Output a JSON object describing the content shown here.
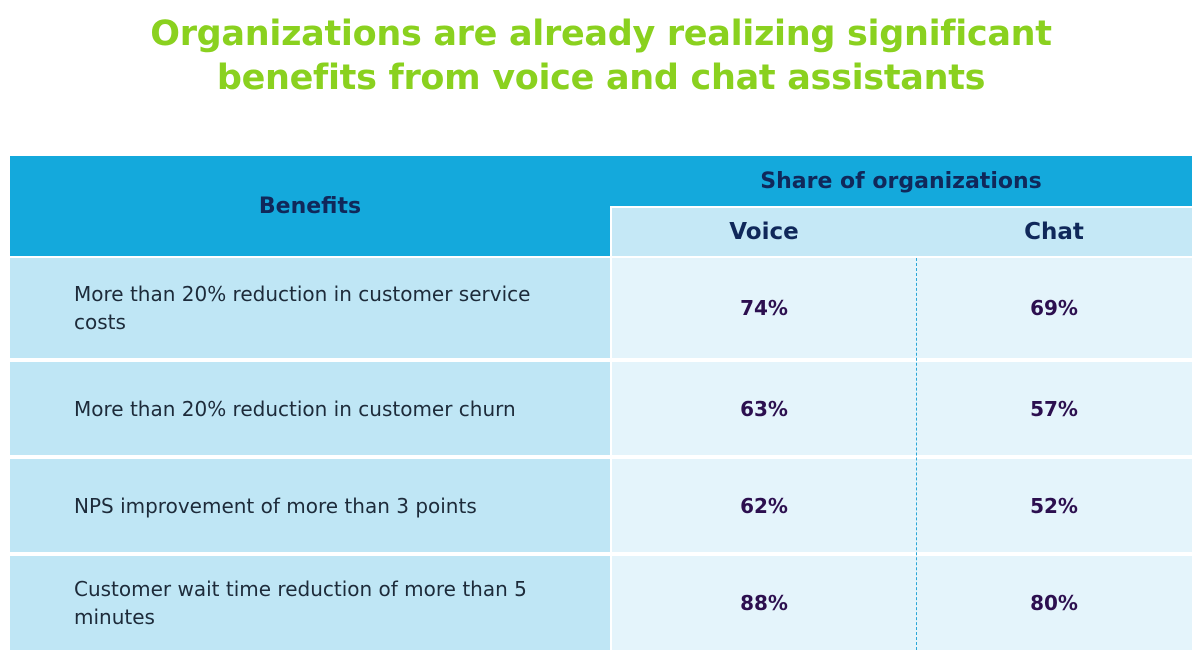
{
  "title": {
    "line1": "Organizations are already realizing significant",
    "line2": "benefits from voice and chat assistants"
  },
  "colors": {
    "title": "#8ad11f",
    "header_bg": "#14a9dc",
    "subheader_bg": "#c5e8f6",
    "label_bg": "#bfe6f5",
    "value_bg": "#e4f4fb",
    "value_text": "#2c0f4f",
    "header_text": "#10285a"
  },
  "chart_data": {
    "type": "table",
    "title": "Organizations are already realizing significant benefits from voice and chat assistants",
    "header": {
      "benefits": "Benefits",
      "group": "Share of organizations",
      "voice": "Voice",
      "chat": "Chat"
    },
    "rows": [
      {
        "benefit": "More than 20% reduction in customer service costs",
        "voice": "74%",
        "chat": "69%"
      },
      {
        "benefit": "More than 20% reduction in customer churn",
        "voice": "63%",
        "chat": "57%"
      },
      {
        "benefit": "NPS improvement of more than 3 points",
        "voice": "62%",
        "chat": "52%"
      },
      {
        "benefit": "Customer wait time reduction of more than 5 minutes",
        "voice": "88%",
        "chat": "80%"
      }
    ]
  }
}
